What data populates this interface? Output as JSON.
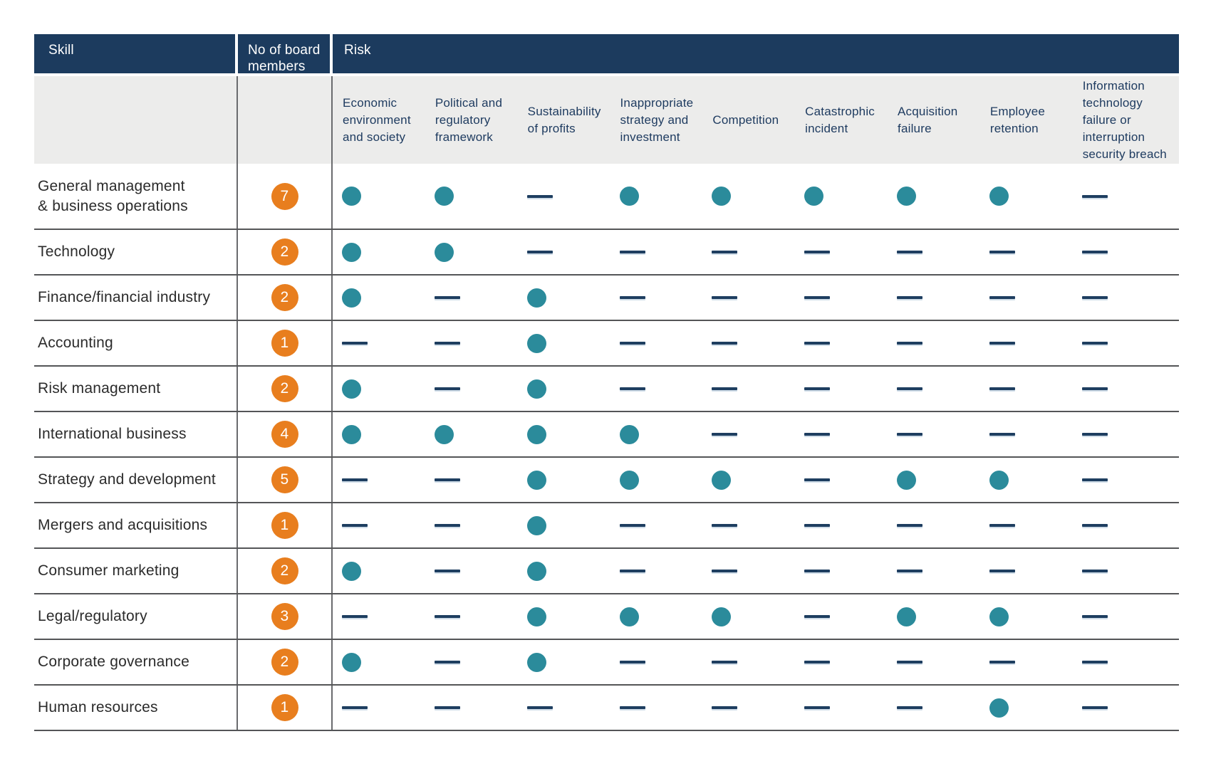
{
  "chart_data": {
    "type": "table",
    "title": "Board skills vs risk coverage matrix",
    "header": {
      "skill": "Skill",
      "board_members": "No of board members",
      "risk_group": "Risk"
    },
    "risk_columns": [
      "Economic environment and society",
      "Political and regulatory framework",
      "Sustainability of profits",
      "Inappropriate strategy and investment",
      "Competition",
      "Catastrophic incident",
      "Acquisition failure",
      "Employee retention",
      "Information technology failure or interruption security breach"
    ],
    "mark_icons": {
      "dot": "filled-teal-circle",
      "dash": "navy-horizontal-dash"
    },
    "rows": [
      {
        "skill": "General management\n& business operations",
        "board_members": 7,
        "marks": [
          "dot",
          "dot",
          "dash",
          "dot",
          "dot",
          "dot",
          "dot",
          "dot",
          "dash"
        ]
      },
      {
        "skill": "Technology",
        "board_members": 2,
        "marks": [
          "dot",
          "dot",
          "dash",
          "dash",
          "dash",
          "dash",
          "dash",
          "dash",
          "dash"
        ]
      },
      {
        "skill": "Finance/financial industry",
        "board_members": 2,
        "marks": [
          "dot",
          "dash",
          "dot",
          "dash",
          "dash",
          "dash",
          "dash",
          "dash",
          "dash"
        ]
      },
      {
        "skill": "Accounting",
        "board_members": 1,
        "marks": [
          "dash",
          "dash",
          "dot",
          "dash",
          "dash",
          "dash",
          "dash",
          "dash",
          "dash"
        ]
      },
      {
        "skill": "Risk management",
        "board_members": 2,
        "marks": [
          "dot",
          "dash",
          "dot",
          "dash",
          "dash",
          "dash",
          "dash",
          "dash",
          "dash"
        ]
      },
      {
        "skill": "International business",
        "board_members": 4,
        "marks": [
          "dot",
          "dot",
          "dot",
          "dot",
          "dash",
          "dash",
          "dash",
          "dash",
          "dash"
        ]
      },
      {
        "skill": "Strategy and development",
        "board_members": 5,
        "marks": [
          "dash",
          "dash",
          "dot",
          "dot",
          "dot",
          "dash",
          "dot",
          "dot",
          "dash"
        ]
      },
      {
        "skill": "Mergers and acquisitions",
        "board_members": 1,
        "marks": [
          "dash",
          "dash",
          "dot",
          "dash",
          "dash",
          "dash",
          "dash",
          "dash",
          "dash"
        ]
      },
      {
        "skill": "Consumer marketing",
        "board_members": 2,
        "marks": [
          "dot",
          "dash",
          "dot",
          "dash",
          "dash",
          "dash",
          "dash",
          "dash",
          "dash"
        ]
      },
      {
        "skill": "Legal/regulatory",
        "board_members": 3,
        "marks": [
          "dash",
          "dash",
          "dot",
          "dot",
          "dot",
          "dash",
          "dot",
          "dot",
          "dash"
        ]
      },
      {
        "skill": "Corporate governance",
        "board_members": 2,
        "marks": [
          "dot",
          "dash",
          "dot",
          "dash",
          "dash",
          "dash",
          "dash",
          "dash",
          "dash"
        ]
      },
      {
        "skill": "Human resources",
        "board_members": 1,
        "marks": [
          "dash",
          "dash",
          "dash",
          "dash",
          "dash",
          "dash",
          "dash",
          "dot",
          "dash"
        ]
      }
    ],
    "colors": {
      "header_navy": "#1C3B5E",
      "subheader_gray": "#ECECEB",
      "dot_teal": "#2B8B9B",
      "badge_orange": "#E87E1E",
      "dash_navy": "#1E3E60",
      "grid_line_gray": "#545557"
    }
  }
}
